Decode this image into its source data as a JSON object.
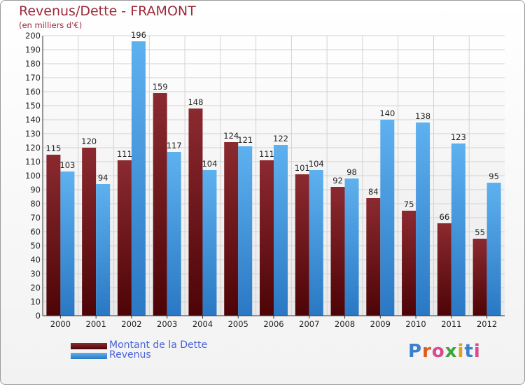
{
  "header": {
    "title": "Revenus/Dette - FRAMONT",
    "subtitle": "(en milliers d'€)"
  },
  "chart_data": {
    "type": "bar",
    "categories": [
      "2000",
      "2001",
      "2002",
      "2003",
      "2004",
      "2005",
      "2006",
      "2007",
      "2008",
      "2009",
      "2010",
      "2011",
      "2012"
    ],
    "series": [
      {
        "name": "Montant de la Dette",
        "color": "#7a1a1f",
        "values": [
          115,
          120,
          111,
          159,
          148,
          124,
          111,
          101,
          92,
          84,
          75,
          66,
          55
        ]
      },
      {
        "name": "Revenus",
        "color": "#4da3e3",
        "values": [
          103,
          94,
          196,
          117,
          104,
          121,
          122,
          104,
          98,
          140,
          138,
          123,
          95
        ]
      }
    ],
    "yticks": [
      0,
      10,
      20,
      30,
      40,
      50,
      60,
      70,
      80,
      90,
      100,
      110,
      120,
      130,
      140,
      150,
      160,
      170,
      180,
      190,
      200
    ],
    "ylim": [
      0,
      200
    ],
    "grid": true,
    "legend": "bottom-left"
  },
  "legend": {
    "items": [
      {
        "label": "Montant de la Dette",
        "color": "#7a1a1f"
      },
      {
        "label": "Revenus",
        "color": "#4da3e3"
      }
    ]
  },
  "logo": {
    "letters": [
      "P",
      "r",
      "o",
      "x",
      "i",
      "t",
      "i"
    ]
  }
}
